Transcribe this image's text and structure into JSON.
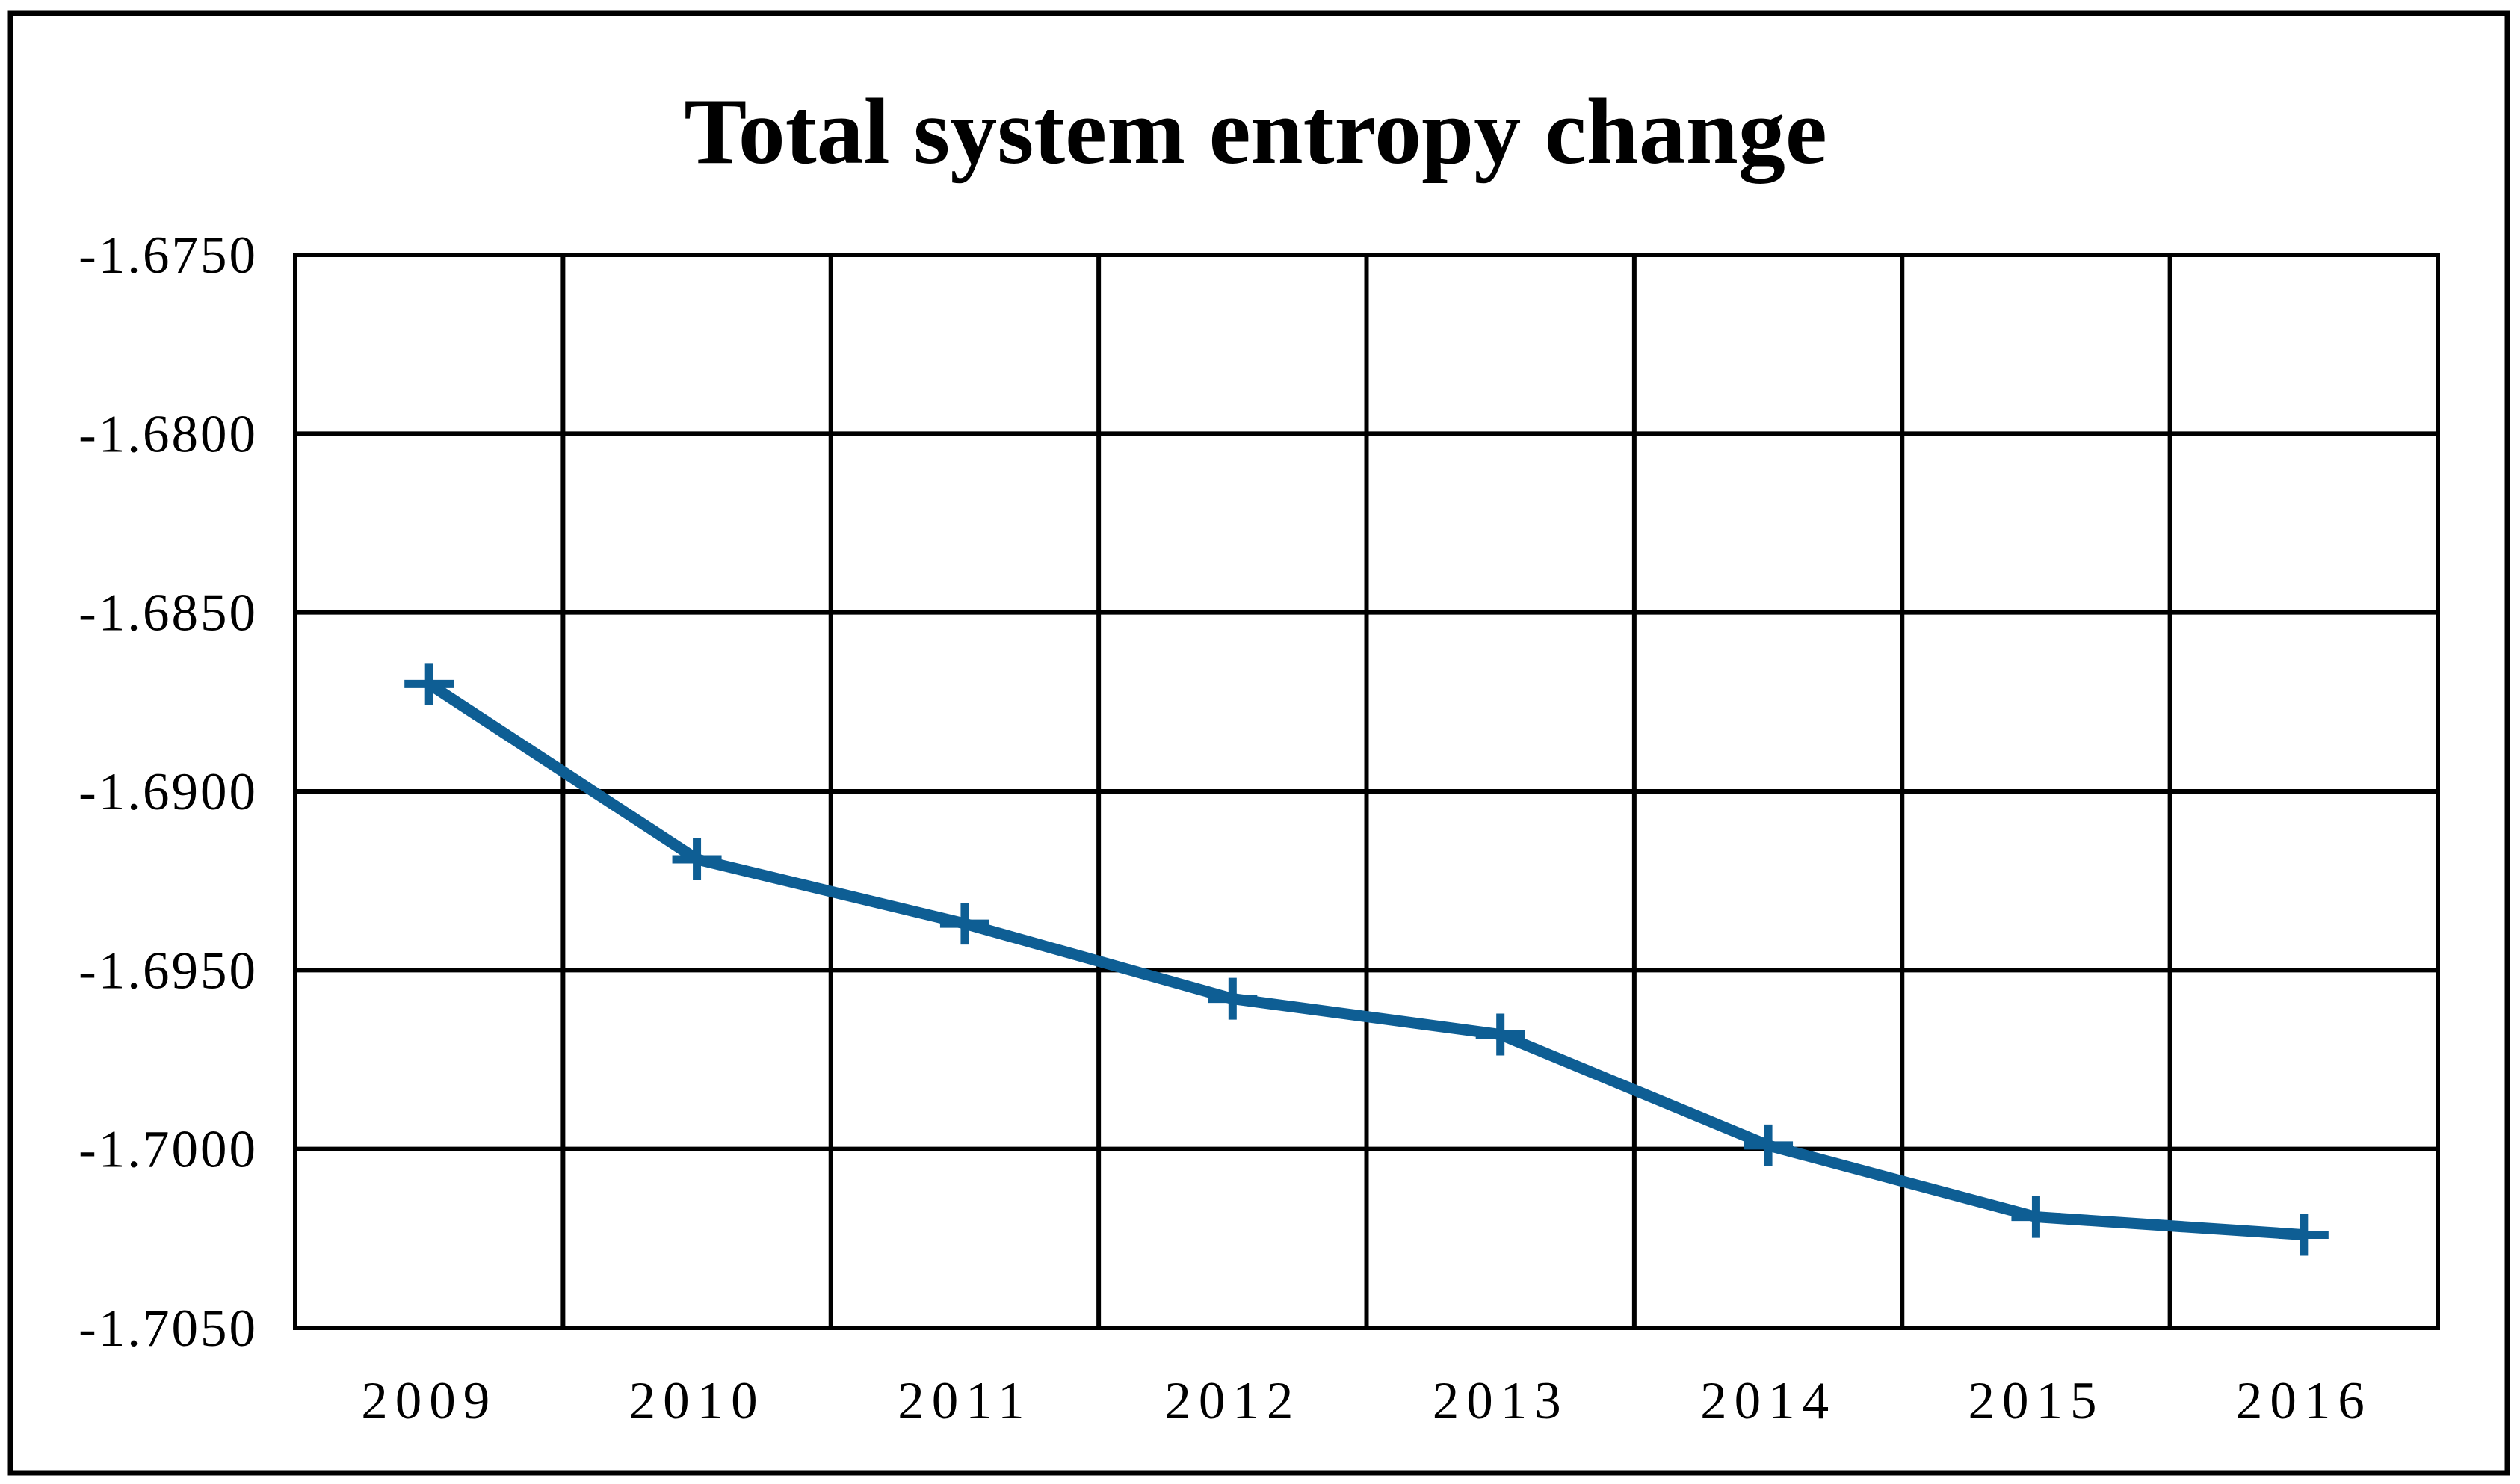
{
  "chart_data": {
    "type": "line",
    "title": "Total system entropy change",
    "categories": [
      "2009",
      "2010",
      "2011",
      "2012",
      "2013",
      "2014",
      "2015",
      "2016"
    ],
    "values": [
      -1.687,
      -1.6919,
      -1.6937,
      -1.6958,
      -1.6968,
      -1.6999,
      -1.7019,
      -1.7024
    ],
    "series_name": "Total system entropy change",
    "xlabel": "",
    "ylabel": "",
    "y_ticks": [
      "-1.6750",
      "-1.6800",
      "-1.6850",
      "-1.6900",
      "-1.6950",
      "-1.7000",
      "-1.7050"
    ],
    "ylim": [
      -1.705,
      -1.675
    ],
    "grid": true,
    "legend_position": "none",
    "marker": "plus",
    "line_color": "#0E5E94",
    "grid_color": "#000000",
    "border_color": "#000000",
    "background_color": "#ffffff"
  }
}
